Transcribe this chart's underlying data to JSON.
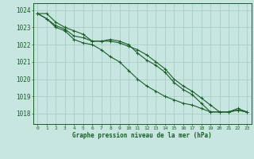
{
  "title": "Graphe pression niveau de la mer (hPa)",
  "background_color": "#c8e6e0",
  "grid_color": "#a8ccc8",
  "line_color": "#1a5c2a",
  "marker_color": "#1a5c2a",
  "xlim": [
    -0.5,
    23.5
  ],
  "ylim": [
    1017.4,
    1024.4
  ],
  "yticks": [
    1018,
    1019,
    1020,
    1021,
    1022,
    1023,
    1024
  ],
  "xticks": [
    0,
    1,
    2,
    3,
    4,
    5,
    6,
    7,
    8,
    9,
    10,
    11,
    12,
    13,
    14,
    15,
    16,
    17,
    18,
    19,
    20,
    21,
    22,
    23
  ],
  "series1": [
    1023.8,
    1023.8,
    1023.3,
    1023.0,
    1022.8,
    1022.6,
    1022.2,
    1022.2,
    1022.3,
    1022.2,
    1022.0,
    1021.5,
    1021.1,
    1020.8,
    1020.4,
    1019.8,
    1019.4,
    1019.1,
    1018.6,
    1018.1,
    1018.1,
    1018.1,
    1018.3,
    1018.1
  ],
  "series2": [
    1023.8,
    1023.5,
    1023.1,
    1022.9,
    1022.5,
    1022.4,
    1022.2,
    1022.2,
    1022.2,
    1022.1,
    1021.9,
    1021.7,
    1021.4,
    1021.0,
    1020.6,
    1020.0,
    1019.6,
    1019.3,
    1018.9,
    1018.5,
    1018.1,
    1018.1,
    1018.2,
    1018.1
  ],
  "series3": [
    1023.8,
    1023.5,
    1023.0,
    1022.8,
    1022.3,
    1022.1,
    1022.0,
    1021.7,
    1021.3,
    1021.0,
    1020.5,
    1020.0,
    1019.6,
    1019.3,
    1019.0,
    1018.8,
    1018.6,
    1018.5,
    1018.3,
    1018.1,
    1018.1,
    1018.1,
    1018.2,
    1018.1
  ]
}
